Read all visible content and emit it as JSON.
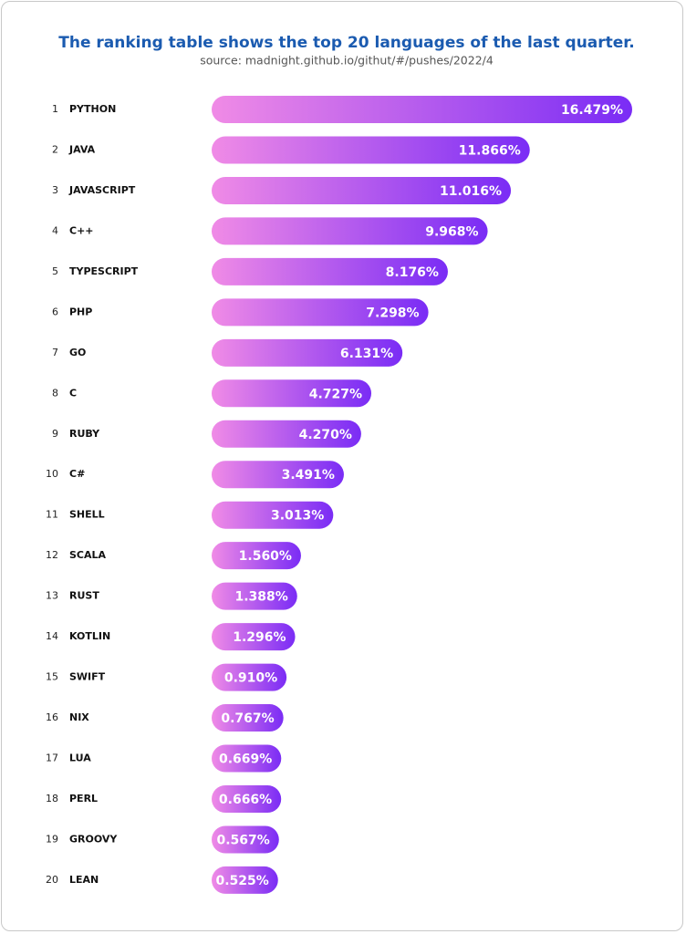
{
  "chart_data": {
    "type": "bar",
    "title": "The ranking table shows the top 20 languages of the last quarter.",
    "subtitle": "source: madnight.github.io/githut/#/pushes/2022/4",
    "ranks": [
      1,
      2,
      3,
      4,
      5,
      6,
      7,
      8,
      9,
      10,
      11,
      12,
      13,
      14,
      15,
      16,
      17,
      18,
      19,
      20
    ],
    "categories": [
      "PYTHON",
      "JAVA",
      "JAVASCRIPT",
      "C++",
      "TYPESCRIPT",
      "PHP",
      "GO",
      "C",
      "RUBY",
      "C#",
      "SHELL",
      "SCALA",
      "RUST",
      "KOTLIN",
      "SWIFT",
      "NIX",
      "LUA",
      "PERL",
      "GROOVY",
      "LEAN"
    ],
    "values": [
      16.479,
      11.866,
      11.016,
      9.968,
      8.176,
      7.298,
      6.131,
      4.727,
      4.27,
      3.491,
      3.013,
      1.56,
      1.388,
      1.296,
      0.91,
      0.767,
      0.669,
      0.666,
      0.567,
      0.525
    ],
    "value_labels": [
      "16.479%",
      "11.866%",
      "11.016%",
      "9.968%",
      "8.176%",
      "7.298%",
      "6.131%",
      "4.727%",
      "4.270%",
      "3.491%",
      "3.013%",
      "1.560%",
      "1.388%",
      "1.296%",
      "0.910%",
      "0.767%",
      "0.669%",
      "0.666%",
      "0.567%",
      "0.525%"
    ]
  }
}
